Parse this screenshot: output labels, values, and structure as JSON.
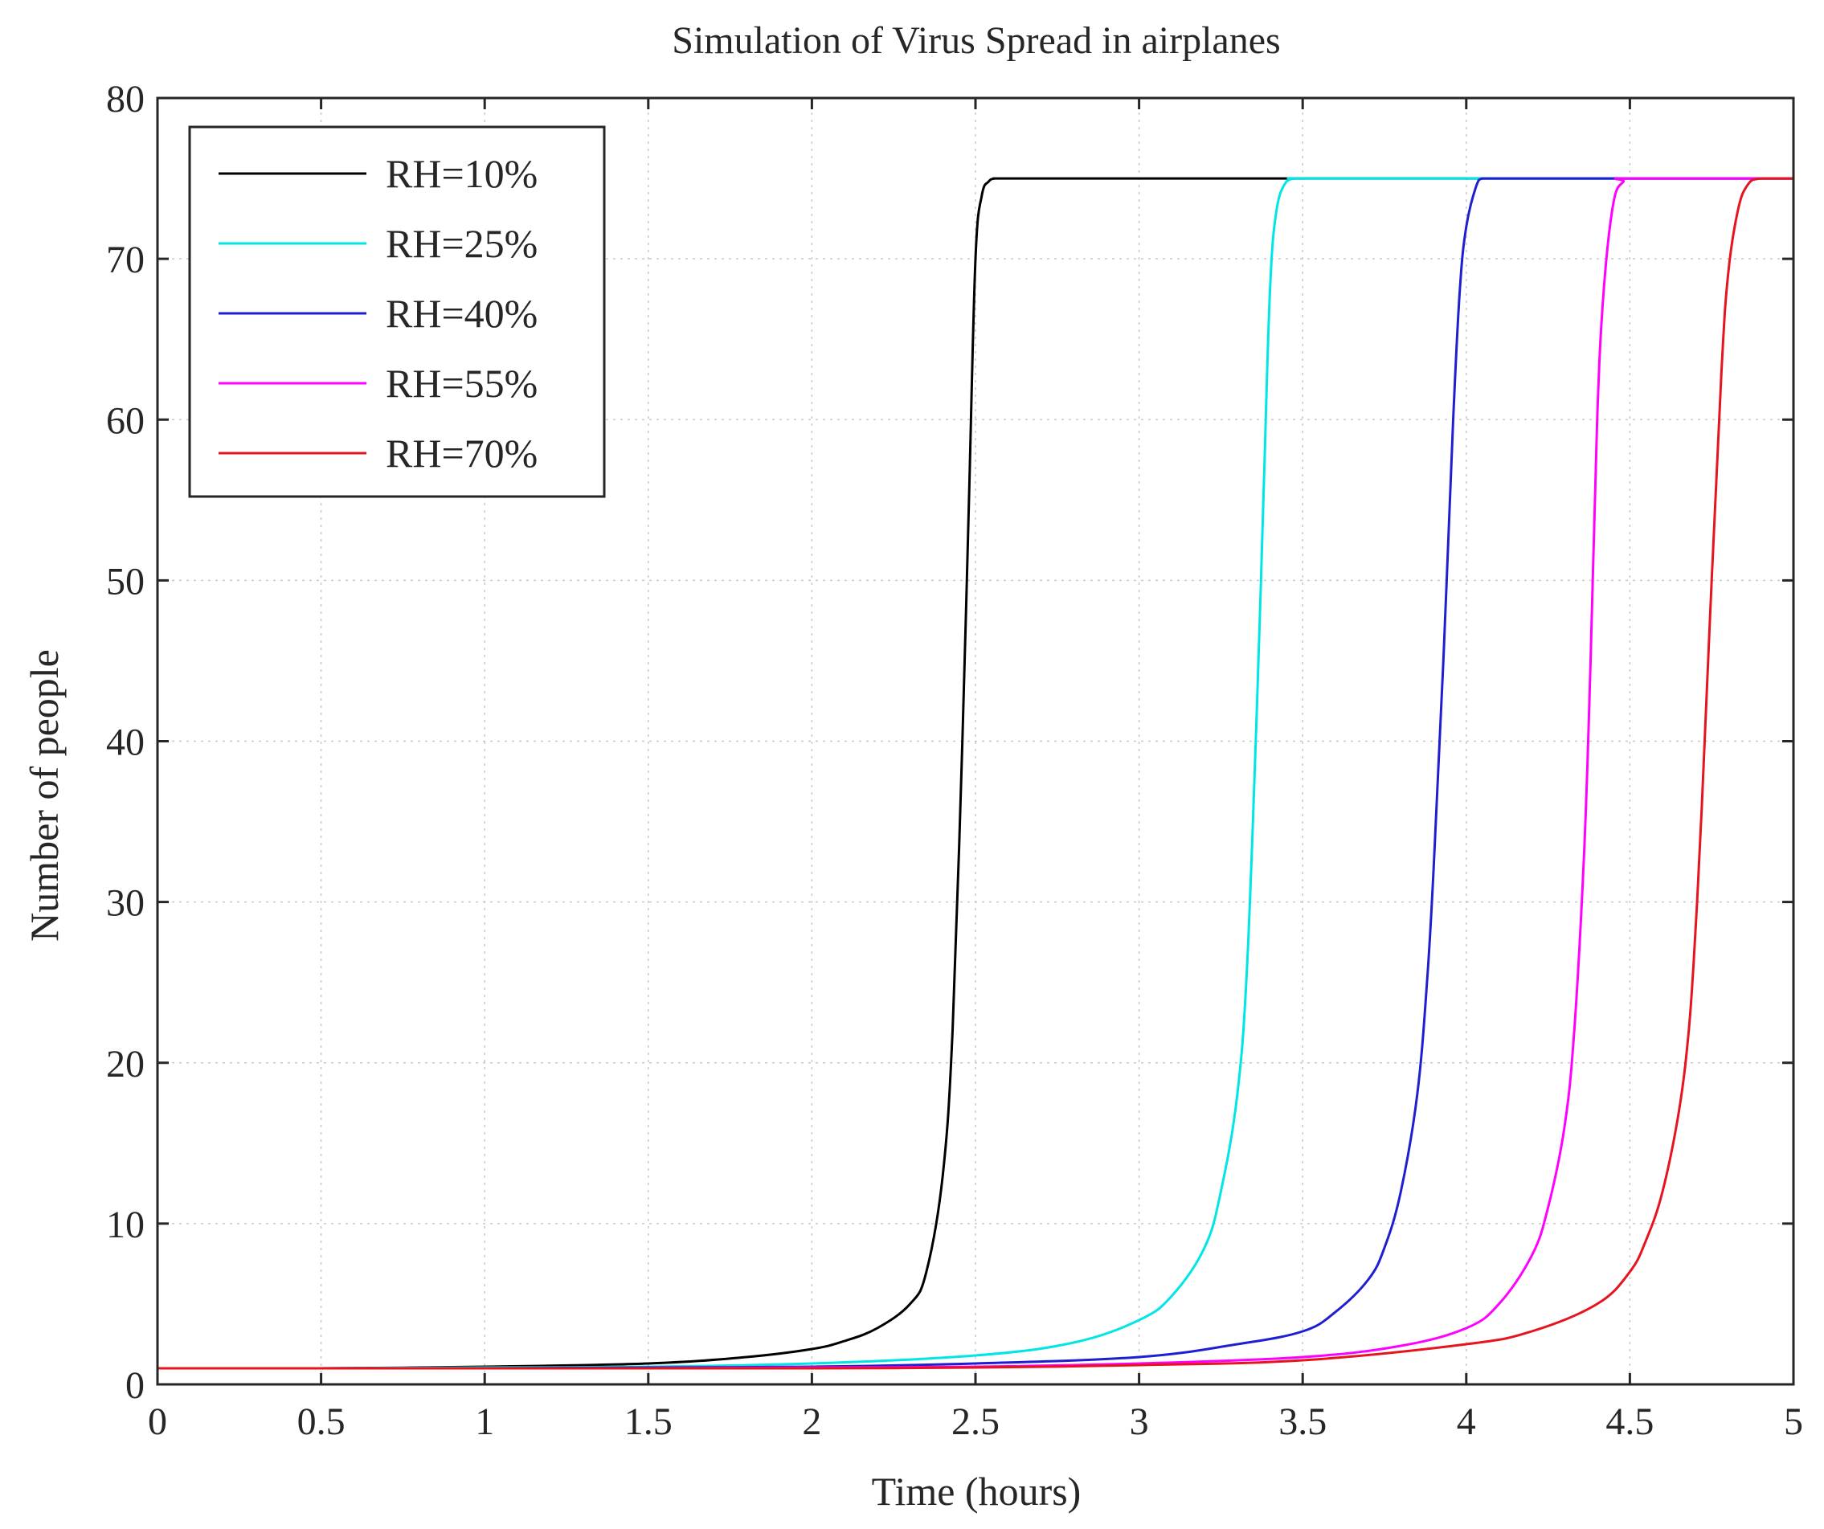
{
  "chart_data": {
    "type": "line",
    "title": "Simulation of Virus Spread in airplanes",
    "xlabel": "Time (hours)",
    "ylabel": "Number of people",
    "xlim": [
      0,
      5
    ],
    "ylim": [
      0,
      80
    ],
    "xticks": [
      0,
      0.5,
      1,
      1.5,
      2,
      2.5,
      3,
      3.5,
      4,
      4.5,
      5
    ],
    "xtick_labels": [
      "0",
      "0.5",
      "1",
      "1.5",
      "2",
      "2.5",
      "3",
      "3.5",
      "4",
      "4.5",
      "5"
    ],
    "yticks": [
      0,
      10,
      20,
      30,
      40,
      50,
      60,
      70,
      80
    ],
    "ytick_labels": [
      "0",
      "10",
      "20",
      "30",
      "40",
      "50",
      "60",
      "70",
      "80"
    ],
    "grid": true,
    "legend_position": "top-left",
    "series": [
      {
        "name": "RH=10%",
        "color": "#000000",
        "x": [
          0,
          0.5,
          1,
          1.5,
          1.8,
          2.0,
          2.1,
          2.2,
          2.3,
          2.35,
          2.4,
          2.43,
          2.46,
          2.48,
          2.5,
          2.52,
          2.54,
          2.56,
          2.6,
          3.0,
          3.5,
          4.0,
          4.5,
          5.0
        ],
        "y": [
          1,
          1,
          1.1,
          1.3,
          1.7,
          2.2,
          2.7,
          3.5,
          5,
          7,
          13,
          22,
          40,
          55,
          70,
          74,
          74.8,
          75,
          75,
          75,
          75,
          75,
          75,
          75
        ]
      },
      {
        "name": "RH=25%",
        "color": "#00e6e6",
        "x": [
          0,
          0.5,
          1,
          1.5,
          2.0,
          2.5,
          2.8,
          3.0,
          3.1,
          3.2,
          3.25,
          3.3,
          3.33,
          3.36,
          3.38,
          3.4,
          3.42,
          3.45,
          3.48,
          3.5,
          4.0,
          4.5,
          5.0
        ],
        "y": [
          1,
          1,
          1.05,
          1.1,
          1.3,
          1.8,
          2.6,
          4,
          5.5,
          8.5,
          12,
          18,
          26,
          42,
          55,
          68,
          73,
          74.8,
          75,
          75,
          75,
          75,
          75
        ]
      },
      {
        "name": "RH=40%",
        "color": "#1f1fd1",
        "x": [
          0,
          0.5,
          1,
          1.5,
          2.0,
          2.5,
          3.0,
          3.3,
          3.5,
          3.6,
          3.7,
          3.75,
          3.8,
          3.85,
          3.88,
          3.9,
          3.93,
          3.96,
          3.98,
          4.0,
          4.03,
          4.05,
          4.1,
          4.5,
          5.0
        ],
        "y": [
          1,
          1,
          1,
          1.05,
          1.1,
          1.3,
          1.7,
          2.5,
          3.3,
          4.5,
          6.5,
          8.5,
          12,
          18,
          25,
          32,
          45,
          60,
          68,
          72,
          74.5,
          75,
          75,
          75,
          75
        ]
      },
      {
        "name": "RH=55%",
        "color": "#ff00ff",
        "x": [
          0,
          0.5,
          1,
          1.5,
          2.0,
          2.5,
          3.0,
          3.5,
          3.8,
          4.0,
          4.1,
          4.2,
          4.25,
          4.3,
          4.33,
          4.36,
          4.38,
          4.4,
          4.42,
          4.45,
          4.48,
          4.5,
          5.0
        ],
        "y": [
          1,
          1,
          1,
          1,
          1.05,
          1.1,
          1.3,
          1.7,
          2.4,
          3.5,
          5,
          8,
          11,
          16,
          22,
          33,
          45,
          60,
          68,
          73.5,
          74.8,
          75,
          75
        ]
      },
      {
        "name": "RH=70%",
        "color": "#e6141e",
        "x": [
          0,
          0.5,
          1,
          1.5,
          2.0,
          2.5,
          3.0,
          3.5,
          4.0,
          4.2,
          4.4,
          4.5,
          4.55,
          4.6,
          4.65,
          4.68,
          4.7,
          4.72,
          4.75,
          4.78,
          4.8,
          4.83,
          4.86,
          4.9,
          5.0
        ],
        "y": [
          1,
          1,
          1,
          1,
          1,
          1.05,
          1.2,
          1.5,
          2.5,
          3.3,
          5,
          7,
          9,
          12,
          17,
          22,
          28,
          36,
          50,
          63,
          69,
          73,
          74.6,
          75,
          75
        ]
      }
    ]
  }
}
